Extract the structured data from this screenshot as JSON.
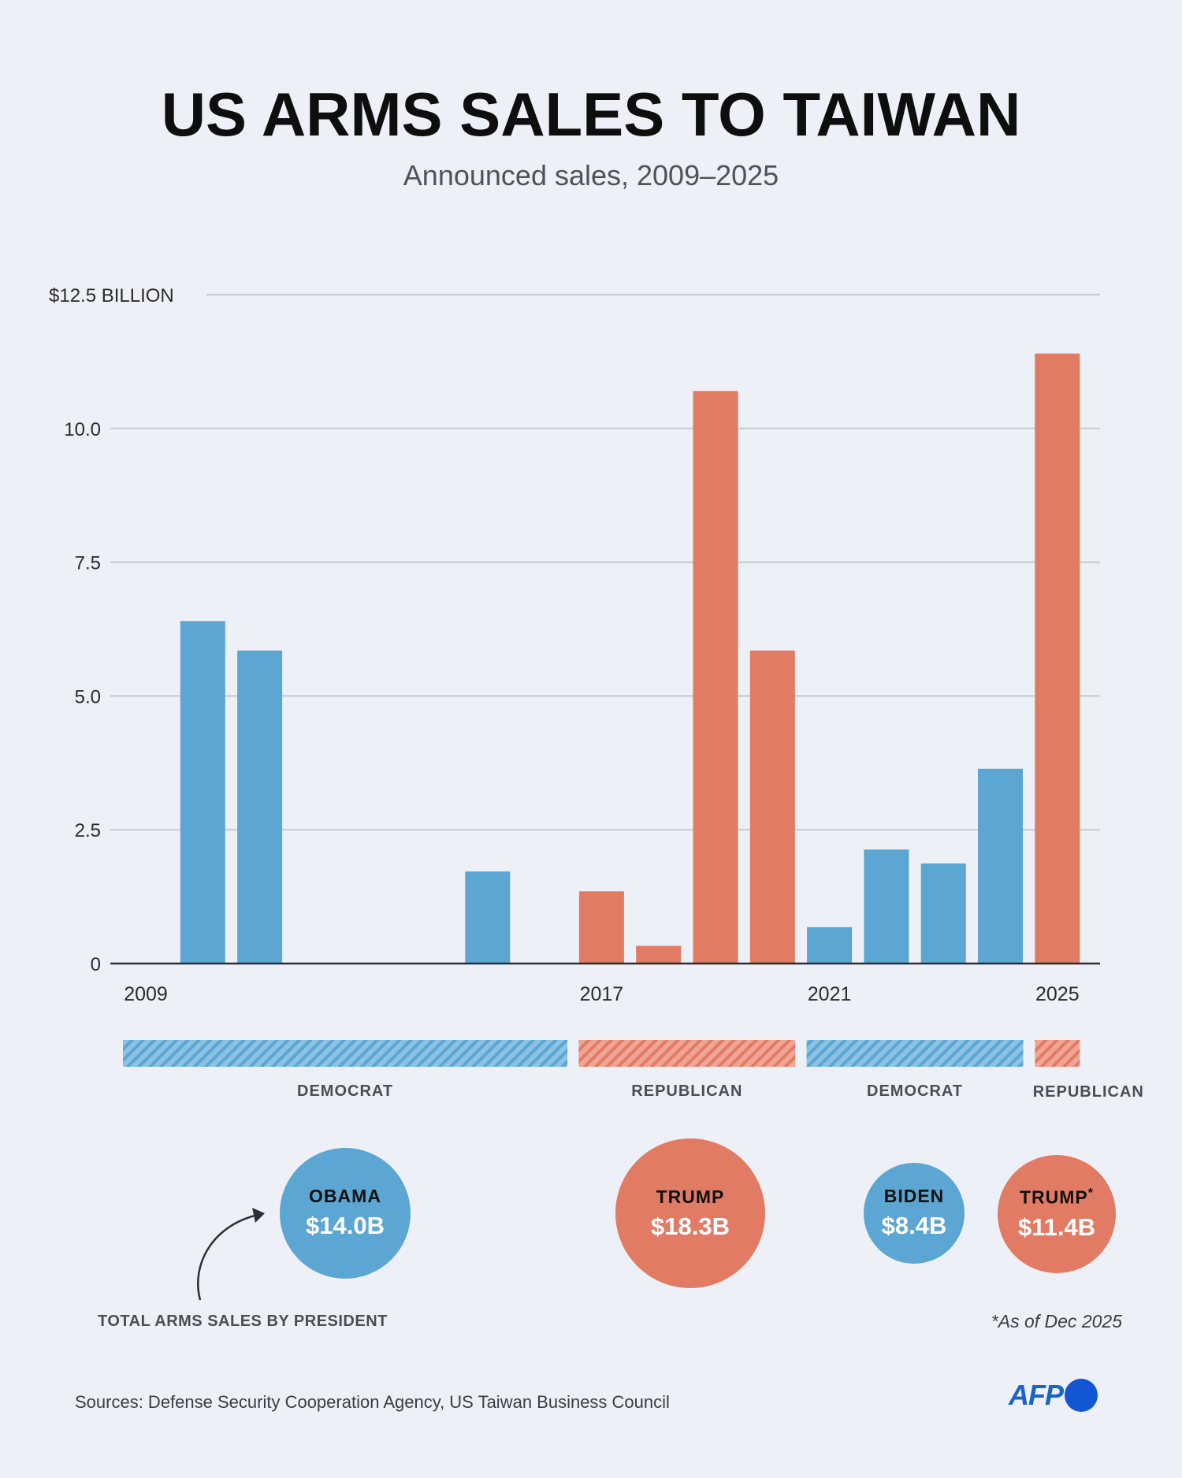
{
  "title": "US ARMS SALES TO TAIWAN",
  "subtitle": "Announced sales, 2009–2025",
  "colors": {
    "democrat": "#5ba6d3",
    "republican": "#e27b64",
    "background": "#edf0f6",
    "grid": "#c9ccd3",
    "axis": "#2e2f33",
    "afp_blue": "#1256d4"
  },
  "chart_data": {
    "type": "bar",
    "x": [
      2009,
      2010,
      2011,
      2012,
      2013,
      2014,
      2015,
      2016,
      2017,
      2018,
      2019,
      2020,
      2021,
      2022,
      2023,
      2024,
      2025
    ],
    "values": [
      0,
      6.4,
      5.85,
      0,
      0,
      0,
      1.72,
      0,
      1.35,
      0.33,
      10.7,
      5.85,
      0.68,
      2.13,
      1.87,
      3.64,
      11.4
    ],
    "bar_party": [
      "democrat",
      "democrat",
      "democrat",
      "democrat",
      "democrat",
      "democrat",
      "democrat",
      "democrat",
      "republican",
      "republican",
      "republican",
      "republican",
      "democrat",
      "democrat",
      "democrat",
      "democrat",
      "republican"
    ],
    "ylim": [
      0,
      12.5
    ],
    "y_ticks": [
      0,
      2.5,
      5.0,
      7.5,
      10.0,
      12.5
    ],
    "y_tick_labels": [
      "0",
      "2.5",
      "5.0",
      "7.5",
      "10.0",
      "$12.5 BILLION"
    ],
    "x_tick_labels": [
      {
        "year": 2009,
        "label": "2009"
      },
      {
        "year": 2017,
        "label": "2017"
      },
      {
        "year": 2021,
        "label": "2021"
      },
      {
        "year": 2025,
        "label": "2025"
      }
    ],
    "grid": true,
    "party_bands": [
      {
        "label": "DEMOCRAT",
        "party": "democrat",
        "from_year": 2009,
        "to_year": 2016
      },
      {
        "label": "REPUBLICAN",
        "party": "republican",
        "from_year": 2017,
        "to_year": 2020
      },
      {
        "label": "DEMOCRAT",
        "party": "democrat",
        "from_year": 2021,
        "to_year": 2024
      },
      {
        "label": "REPUBLICAN",
        "party": "republican",
        "from_year": 2025,
        "to_year": 2025
      }
    ]
  },
  "presidents": [
    {
      "name": "OBAMA",
      "amount": "$14.0B",
      "value": 14.0,
      "party": "democrat",
      "marker": ""
    },
    {
      "name": "TRUMP",
      "amount": "$18.3B",
      "value": 18.3,
      "party": "republican",
      "marker": ""
    },
    {
      "name": "BIDEN",
      "amount": "$8.4B",
      "value": 8.4,
      "party": "democrat",
      "marker": ""
    },
    {
      "name": "TRUMP",
      "amount": "$11.4B",
      "value": 11.4,
      "party": "republican",
      "marker": "*"
    }
  ],
  "total_label": "TOTAL ARMS SALES BY PRESIDENT",
  "footnote": "*As of Dec 2025",
  "sources": "Sources: Defense Security Cooperation Agency, US Taiwan Business Council",
  "logo_text": "AFP"
}
